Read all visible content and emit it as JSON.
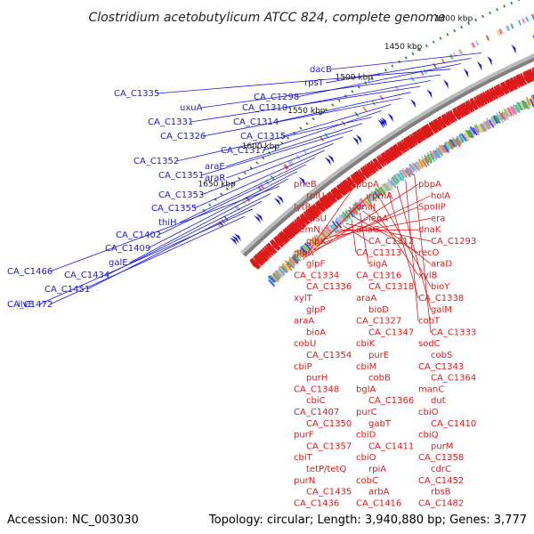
{
  "header": {
    "title": "Clostridium acetobutylicum ATCC 824, complete genome"
  },
  "footer": {
    "accession": "Accession: NC_003030",
    "summary": "Topology: circular; Length: 3,940,880 bp; Genes: 3,777"
  },
  "ticks": [
    "1350 kbp",
    "1400 kbp",
    "1450 kbp",
    "1500 kbp",
    "1550 kbp",
    "1600 kbp",
    "1650 kbp"
  ],
  "colors": {
    "forward_gene": "#1a1adc",
    "reverse_gene": "#dd1a1a",
    "backbone": "#808080",
    "gc_skew": "#3a8a3a"
  },
  "left_labels": [
    "dacB",
    "rpsT",
    "CA_C1298",
    "CA_C1335",
    "uxuA",
    "CA_C1310",
    "CA_C1331",
    "CA_C1314",
    "CA_C1326",
    "CA_C1315",
    "CA_C1317",
    "CA_C1352",
    "araE",
    "CA_C1351",
    "araR",
    "CA_C1353",
    "CA_C1355",
    "thiH",
    "CA_C1402",
    "CA_C1409",
    "galE",
    "CA_C1466",
    "CA_C1434",
    "CA_C1451",
    "ilvE",
    "CA_C1472"
  ],
  "right_labels": [
    "pheB",
    "pbpA",
    "pbpA",
    "rplU",
    "rpmA",
    "holA",
    "lytR",
    "dnaJ",
    "SpoIIP",
    "rpsU",
    "lepA",
    "era",
    "hemN",
    "dnaG",
    "dnaK",
    "glpK",
    "CA_C1312",
    "CA_C1293",
    "glpA",
    "CA_C1313",
    "recO",
    "glpF",
    "sigA",
    "araD",
    "CA_C1334",
    "CA_C1316",
    "xylB",
    "CA_C1336",
    "CA_C1318",
    "bioY",
    "xylT",
    "araA",
    "CA_C1338",
    "glpP",
    "bioD",
    "galM",
    "araA",
    "CA_C1327",
    "cobT",
    "bioA",
    "CA_C1347",
    "CA_C1333",
    "cobU",
    "cbiK",
    "sodC",
    "CA_C1354",
    "purE",
    "cobS",
    "cbiP",
    "cbiM",
    "CA_C1343",
    "purH",
    "cobB",
    "CA_C1364",
    "CA_C1348",
    "bglA",
    "manC",
    "cbiC",
    "CA_C1366",
    "dut",
    "CA_C1407",
    "purC",
    "cbiO",
    "CA_C1350",
    "gabT",
    "CA_C1410",
    "purF",
    "cbiD",
    "cbiQ",
    "CA_C1357",
    "CA_C1411",
    "purM",
    "cbiT",
    "cbiO",
    "CA_C1358",
    "tetP/tetQ",
    "rpiA",
    "cdrC",
    "purN",
    "cobC",
    "CA_C1452",
    "CA_C1435",
    "arbA",
    "rbsB",
    "CA_C1436",
    "CA_C1416",
    "CA_C1482"
  ]
}
